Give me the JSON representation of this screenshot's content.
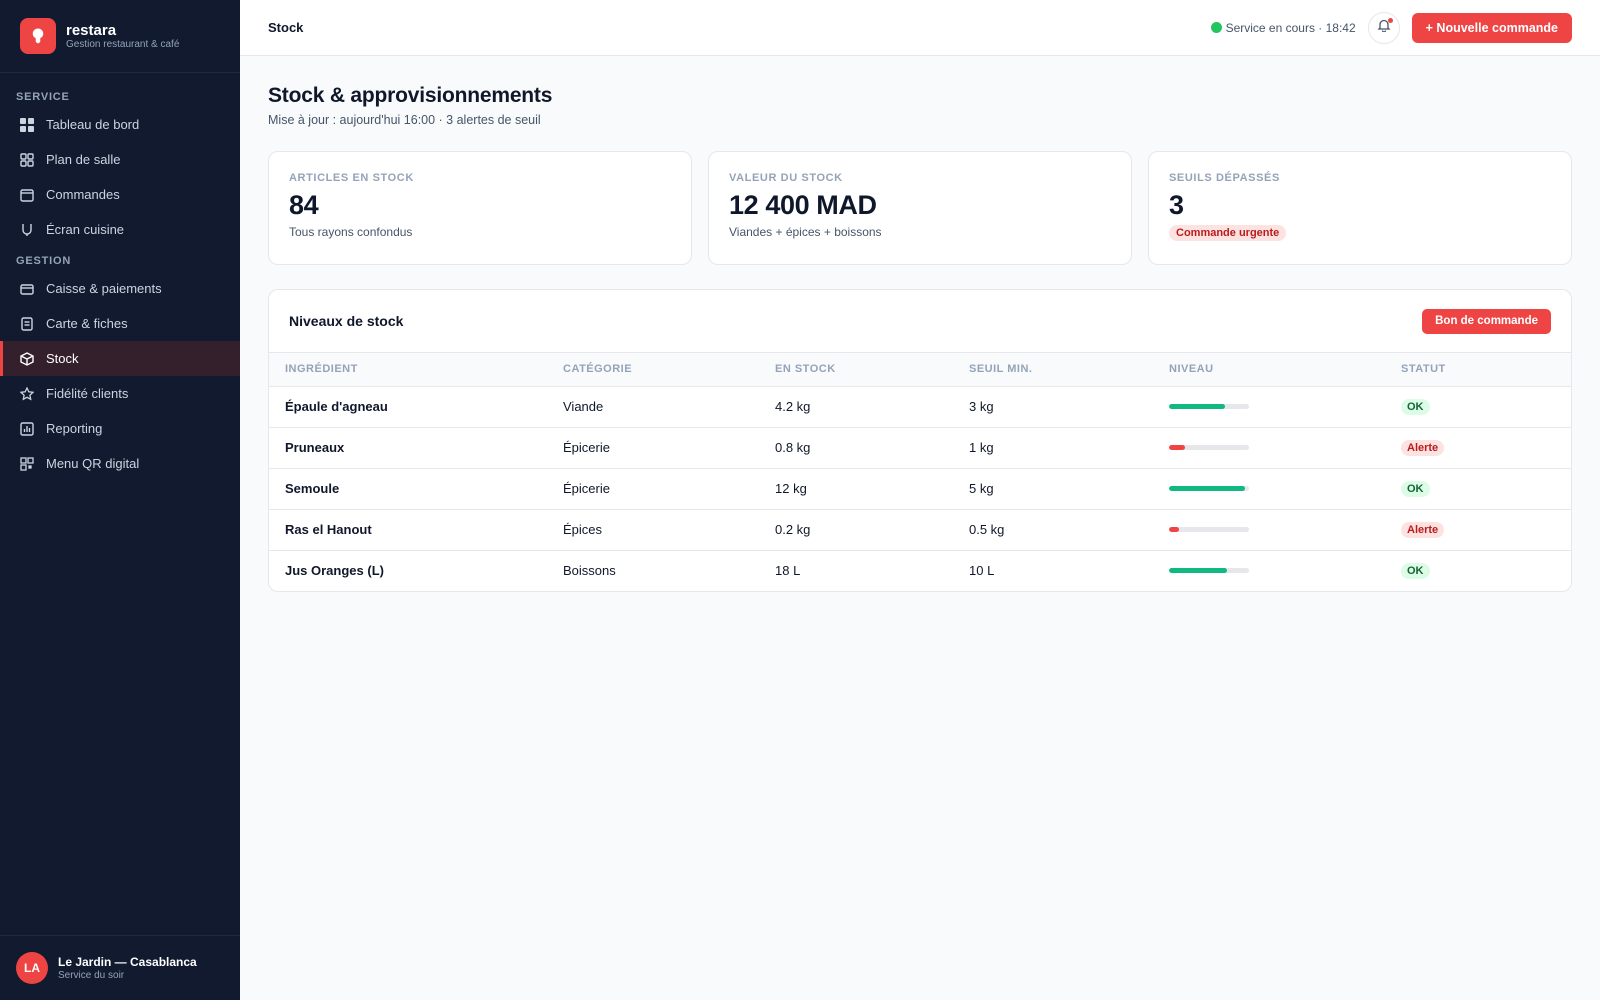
{
  "brand": {
    "name": "restara",
    "subtitle": "Gestion restaurant & café"
  },
  "sidebar": {
    "sections": [
      {
        "label": "SERVICE",
        "items": [
          {
            "label": "Tableau de bord",
            "icon": "grid-icon"
          },
          {
            "label": "Plan de salle",
            "icon": "floor-plan-icon"
          },
          {
            "label": "Commandes",
            "icon": "orders-icon"
          },
          {
            "label": "Écran cuisine",
            "icon": "kitchen-icon"
          }
        ]
      },
      {
        "label": "GESTION",
        "items": [
          {
            "label": "Caisse & paiements",
            "icon": "card-icon"
          },
          {
            "label": "Carte & fiches",
            "icon": "menu-card-icon"
          },
          {
            "label": "Stock",
            "icon": "box-icon",
            "active": true
          },
          {
            "label": "Fidélité clients",
            "icon": "star-icon"
          },
          {
            "label": "Reporting",
            "icon": "chart-icon"
          },
          {
            "label": "Menu QR digital",
            "icon": "qr-icon"
          }
        ]
      }
    ]
  },
  "user": {
    "initials": "LA",
    "name": "Le Jardin — Casablanca",
    "subtitle": "Service du soir"
  },
  "topbar": {
    "title": "Stock",
    "service_status": "Service en cours · 18:42",
    "new_order_label": "+ Nouvelle commande"
  },
  "page": {
    "title": "Stock & approvisionnements",
    "subtitle": "Mise à jour : aujourd'hui 16:00 · 3 alertes de seuil"
  },
  "cards": [
    {
      "label": "ARTICLES EN STOCK",
      "value": "84",
      "sub": "Tous rayons confondus"
    },
    {
      "label": "VALEUR DU STOCK",
      "value": "12 400 MAD",
      "sub": "Viandes + épices + boissons"
    },
    {
      "label": "SEUILS DÉPASSÉS",
      "value": "3",
      "badge": "Commande urgente"
    }
  ],
  "stock_table": {
    "title": "Niveaux de stock",
    "action_label": "Bon de commande",
    "columns": [
      "INGRÉDIENT",
      "CATÉGORIE",
      "EN STOCK",
      "SEUIL MIN.",
      "NIVEAU",
      "STATUT"
    ],
    "rows": [
      {
        "ingredient": "Épaule d'agneau",
        "category": "Viande",
        "in_stock": "4.2 kg",
        "min": "3 kg",
        "level_pct": 70,
        "status": "OK"
      },
      {
        "ingredient": "Pruneaux",
        "category": "Épicerie",
        "in_stock": "0.8 kg",
        "min": "1 kg",
        "level_pct": 20,
        "status": "Alerte"
      },
      {
        "ingredient": "Semoule",
        "category": "Épicerie",
        "in_stock": "12 kg",
        "min": "5 kg",
        "level_pct": 95,
        "status": "OK"
      },
      {
        "ingredient": "Ras el Hanout",
        "category": "Épices",
        "in_stock": "0.2 kg",
        "min": "0.5 kg",
        "level_pct": 13,
        "status": "Alerte"
      },
      {
        "ingredient": "Jus Oranges (L)",
        "category": "Boissons",
        "in_stock": "18 L",
        "min": "10 L",
        "level_pct": 72,
        "status": "OK"
      }
    ]
  },
  "colors": {
    "accent": "#ef4444",
    "ok": "#10b981",
    "alert": "#ef4444",
    "sidebar_bg": "#111a2e"
  }
}
